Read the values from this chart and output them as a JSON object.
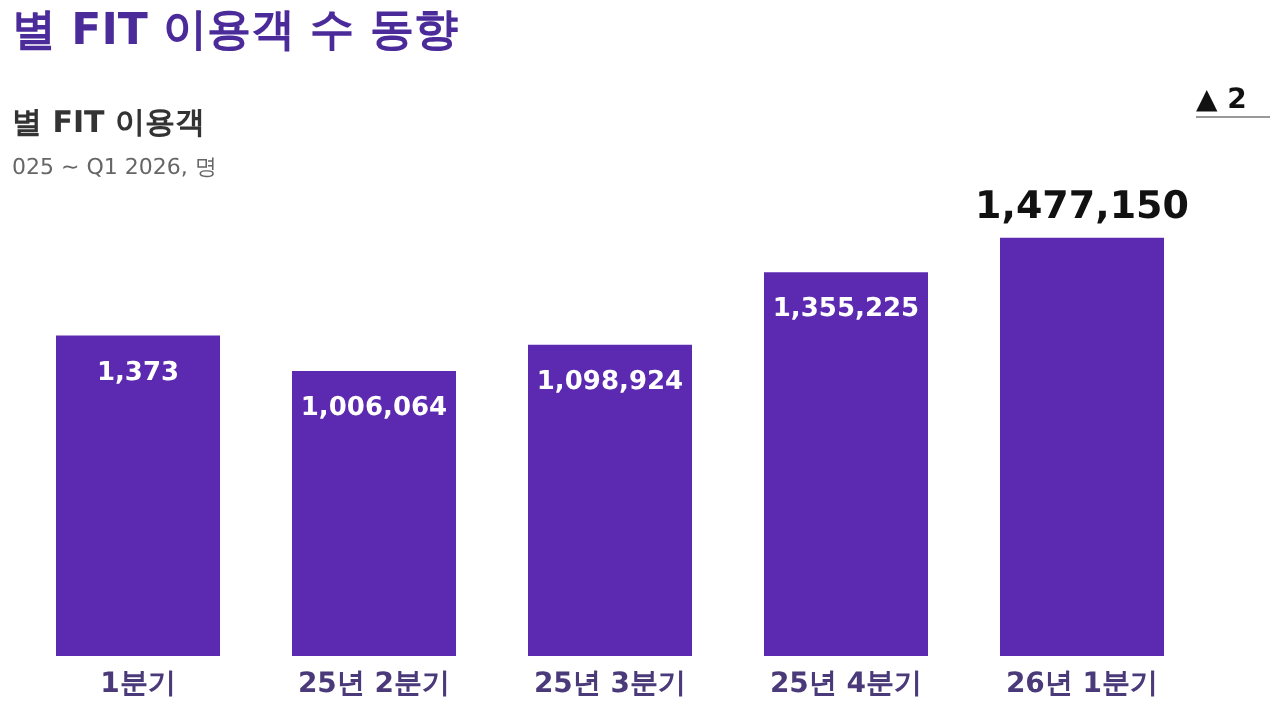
{
  "chart_data": {
    "type": "bar",
    "title": "별 FIT 이용객 수 동향",
    "subtitle": "별 FIT 이용객",
    "annotations": [
      "025 ~ Q1 2026, 명",
      "▲ 2",
      "1,373"
    ],
    "categories": [
      "1분기",
      "25년 2분기",
      "25년 3분기",
      "25년 4분기",
      "26년 1분기"
    ],
    "values": [
      1131373,
      1006064,
      1098924,
      1355225,
      1477150
    ],
    "value_labels": [
      null,
      "1,006,064",
      "1,098,924",
      "1,355,225",
      "1,477,150"
    ],
    "color": "#5b2ab0",
    "grid": false,
    "legend": false
  }
}
